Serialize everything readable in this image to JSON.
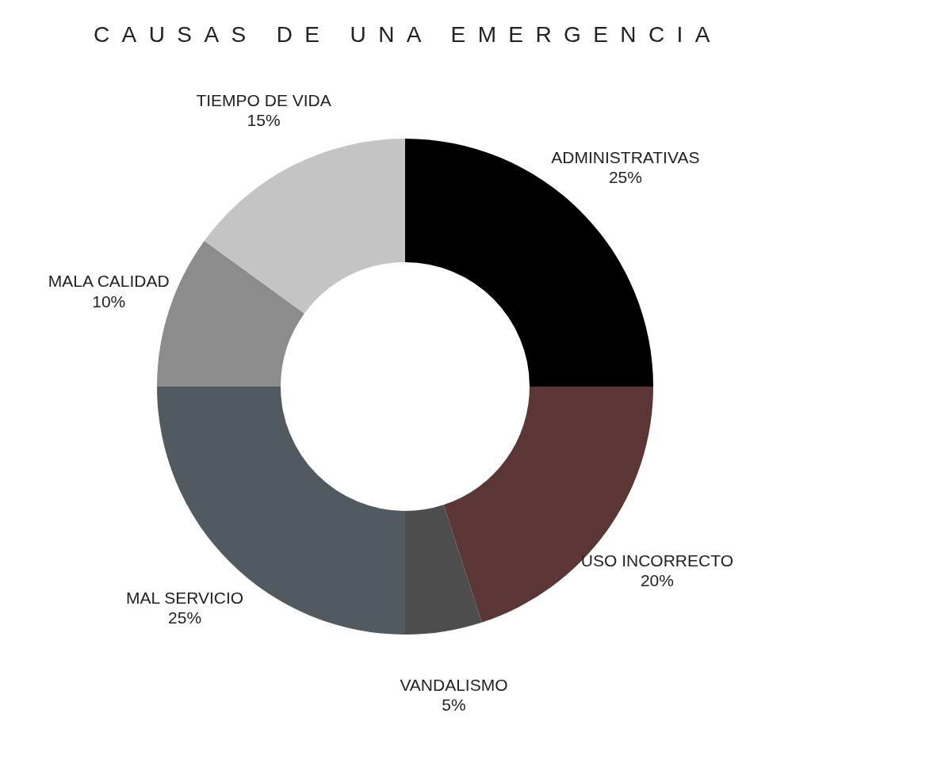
{
  "chart_data": {
    "type": "donut",
    "title": "CAUSAS DE UNA EMERGENCIA",
    "categories": [
      "ADMINISTRATIVAS",
      "USO INCORRECTO",
      "VANDALISMO",
      "MAL SERVICIO",
      "MALA CALIDAD",
      "TIEMPO DE VIDA"
    ],
    "values": [
      25,
      20,
      5,
      25,
      10,
      15
    ],
    "value_labels": [
      "25%",
      "20%",
      "5%",
      "25%",
      "10%",
      "15%"
    ],
    "colors": [
      "#000000",
      "#5c3535",
      "#4d4d4d",
      "#525a61",
      "#8c8c8c",
      "#c4c4c4"
    ],
    "legend": false
  }
}
